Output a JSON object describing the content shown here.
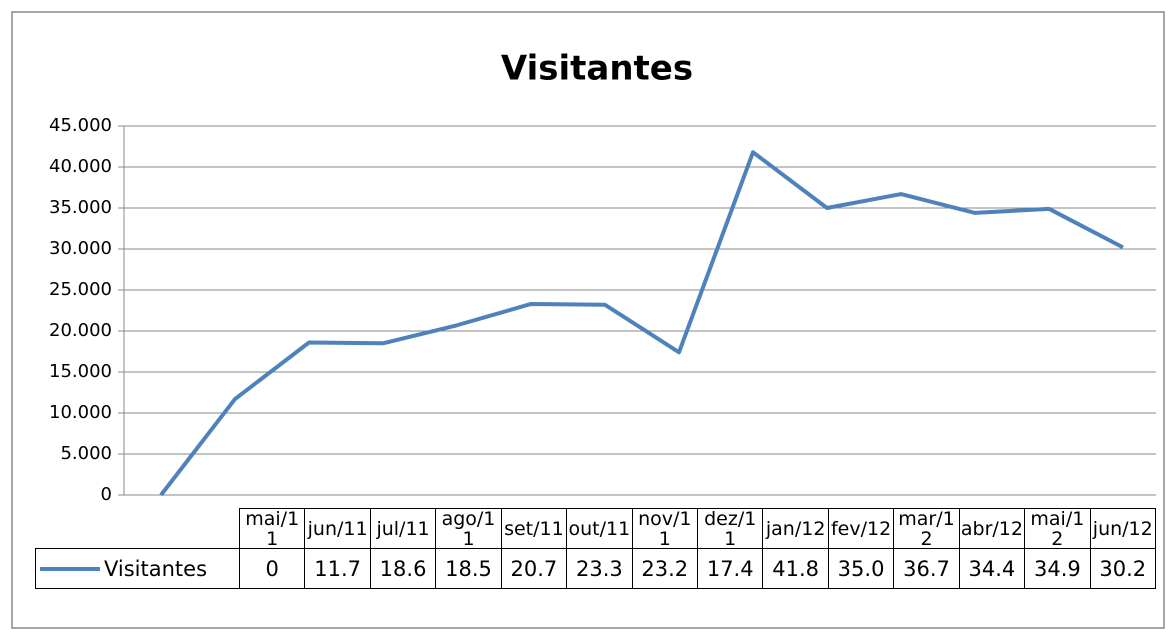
{
  "chart_data": {
    "type": "line",
    "title": "Visitantes",
    "categories": [
      "mai/11",
      "jun/11",
      "jul/11",
      "ago/11",
      "set/11",
      "out/11",
      "nov/11",
      "dez/11",
      "jan/12",
      "fev/12",
      "mar/12",
      "abr/12",
      "mai/12",
      "jun/12"
    ],
    "series": [
      {
        "name": "Visitantes",
        "color": "#4f81bd",
        "values": [
          0,
          11700,
          18600,
          18500,
          20700,
          23300,
          23200,
          17400,
          41800,
          35000,
          36700,
          34400,
          34900,
          30200
        ],
        "value_labels": [
          "0",
          "11.7",
          "18.6",
          "18.5",
          "20.7",
          "23.3",
          "23.2",
          "17.4",
          "41.8",
          "35.0",
          "36.7",
          "34.4",
          "34.9",
          "30.2"
        ]
      }
    ],
    "ylim": [
      0,
      45000
    ],
    "yticks": [
      0,
      {
        "value": 5000,
        "label": "5.000"
      },
      {
        "value": 10000,
        "label": "10.000"
      },
      {
        "value": 15000,
        "label": "15.000"
      },
      {
        "value": 20000,
        "label": "20.000"
      },
      {
        "value": 25000,
        "label": "25.000"
      },
      {
        "value": 30000,
        "label": "30.000"
      },
      {
        "value": 35000,
        "label": "35.000"
      },
      {
        "value": 40000,
        "label": "40.000"
      },
      {
        "value": 45000,
        "label": "45.000"
      }
    ],
    "grid": true
  }
}
